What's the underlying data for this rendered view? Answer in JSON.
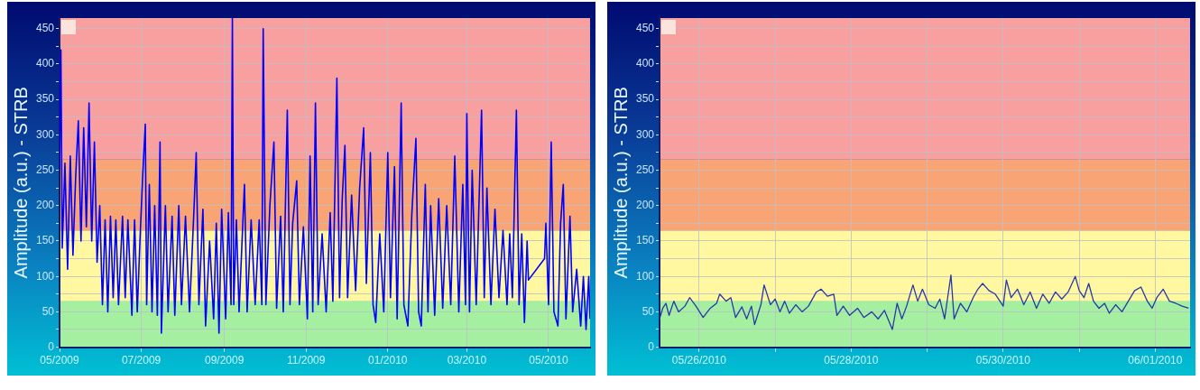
{
  "chart_data": [
    {
      "type": "line",
      "ylabel": "Amplitude (a.u.) - STRB",
      "grid": true,
      "legend": false,
      "marker": "none",
      "xlim": [
        "2009-05-01",
        "2010-06-01"
      ],
      "xticks": [
        {
          "value": "2009-05-01",
          "label": "05/2009"
        },
        {
          "value": "2009-07-01",
          "label": "07/2009"
        },
        {
          "value": "2009-09-01",
          "label": "09/2009"
        },
        {
          "value": "2009-11-01",
          "label": "11/2009"
        },
        {
          "value": "2010-01-01",
          "label": "01/2010"
        },
        {
          "value": "2010-03-01",
          "label": "03/2010"
        },
        {
          "value": "2010-05-01",
          "label": "05/2010"
        }
      ],
      "ylim": [
        0,
        465
      ],
      "yticks": [
        0,
        {
          "value": 25,
          "label": null
        },
        50,
        {
          "value": 75,
          "label": null
        },
        100,
        {
          "value": 125,
          "label": null
        },
        150,
        {
          "value": 175,
          "label": null
        },
        200,
        {
          "value": 225,
          "label": null
        },
        250,
        {
          "value": 275,
          "label": null
        },
        300,
        {
          "value": 325,
          "label": null
        },
        350,
        {
          "value": 375,
          "label": null
        },
        400,
        {
          "value": 425,
          "label": null
        },
        450
      ],
      "bands": [
        {
          "axis": "y",
          "from": 0,
          "to": 65,
          "color": "#a4f0a0"
        },
        {
          "axis": "y",
          "from": 65,
          "to": 165,
          "color": "#fff8a0"
        },
        {
          "axis": "y",
          "from": 165,
          "to": 265,
          "color": "#f8a474"
        },
        {
          "axis": "y",
          "from": 265,
          "to": 465,
          "color": "#f8a0a0"
        }
      ],
      "x": [
        "2009-05-01",
        "2009-05-02",
        "2009-05-03",
        "2009-05-05",
        "2009-05-07",
        "2009-05-09",
        "2009-05-11",
        "2009-05-13",
        "2009-05-15",
        "2009-05-17",
        "2009-05-19",
        "2009-05-21",
        "2009-05-23",
        "2009-05-25",
        "2009-05-27",
        "2009-05-29",
        "2009-05-31",
        "2009-06-02",
        "2009-06-04",
        "2009-06-06",
        "2009-06-08",
        "2009-06-10",
        "2009-06-12",
        "2009-06-14",
        "2009-06-17",
        "2009-06-19",
        "2009-06-21",
        "2009-06-24",
        "2009-06-26",
        "2009-06-28",
        "2009-06-30",
        "2009-07-02",
        "2009-07-04",
        "2009-07-05",
        "2009-07-07",
        "2009-07-09",
        "2009-07-11",
        "2009-07-13",
        "2009-07-15",
        "2009-07-16",
        "2009-07-19",
        "2009-07-21",
        "2009-07-24",
        "2009-07-26",
        "2009-07-29",
        "2009-07-31",
        "2009-08-03",
        "2009-08-06",
        "2009-08-09",
        "2009-08-11",
        "2009-08-13",
        "2009-08-16",
        "2009-08-18",
        "2009-08-21",
        "2009-08-24",
        "2009-08-26",
        "2009-08-28",
        "2009-08-30",
        "2009-09-02",
        "2009-09-04",
        "2009-09-06",
        "2009-09-07",
        "2009-09-08",
        "2009-09-10",
        "2009-09-12",
        "2009-09-16",
        "2009-09-18",
        "2009-09-21",
        "2009-09-24",
        "2009-09-27",
        "2009-09-29",
        "2009-09-30",
        "2009-10-02",
        "2009-10-05",
        "2009-10-08",
        "2009-10-10",
        "2009-10-13",
        "2009-10-15",
        "2009-10-18",
        "2009-10-20",
        "2009-10-22",
        "2009-10-25",
        "2009-10-27",
        "2009-10-30",
        "2009-11-02",
        "2009-11-04",
        "2009-11-06",
        "2009-11-08",
        "2009-11-10",
        "2009-11-13",
        "2009-11-16",
        "2009-11-19",
        "2009-11-21",
        "2009-11-24",
        "2009-11-26",
        "2009-11-28",
        "2009-11-30",
        "2009-12-02",
        "2009-12-05",
        "2009-12-08",
        "2009-12-11",
        "2009-12-14",
        "2009-12-16",
        "2009-12-19",
        "2009-12-21",
        "2009-12-23",
        "2009-12-26",
        "2009-12-29",
        "2010-01-01",
        "2010-01-03",
        "2010-01-06",
        "2010-01-08",
        "2010-01-11",
        "2010-01-13",
        "2010-01-16",
        "2010-01-19",
        "2010-01-22",
        "2010-01-24",
        "2010-01-26",
        "2010-01-29",
        "2010-01-31",
        "2010-02-02",
        "2010-02-05",
        "2010-02-08",
        "2010-02-11",
        "2010-02-14",
        "2010-02-17",
        "2010-02-20",
        "2010-02-23",
        "2010-02-26",
        "2010-02-28",
        "2010-03-01",
        "2010-03-03",
        "2010-03-05",
        "2010-03-08",
        "2010-03-12",
        "2010-03-14",
        "2010-03-16",
        "2010-03-19",
        "2010-03-22",
        "2010-03-25",
        "2010-03-28",
        "2010-03-31",
        "2010-04-02",
        "2010-04-04",
        "2010-04-07",
        "2010-04-09",
        "2010-04-11",
        "2010-04-13",
        "2010-04-15",
        "2010-04-16",
        "2010-04-28",
        "2010-04-29",
        "2010-05-01",
        "2010-05-03",
        "2010-05-05",
        "2010-05-08",
        "2010-05-10",
        "2010-05-12",
        "2010-05-14",
        "2010-05-17",
        "2010-05-19",
        "2010-05-22",
        "2010-05-25",
        "2010-05-27",
        "2010-05-29",
        "2010-05-31",
        "2010-06-01"
      ],
      "series": [
        {
          "color": "#0000ff",
          "values": [
            250,
            420,
            140,
            260,
            110,
            270,
            130,
            240,
            320,
            150,
            310,
            170,
            345,
            150,
            290,
            120,
            200,
            60,
            180,
            50,
            185,
            70,
            180,
            60,
            185,
            70,
            180,
            45,
            180,
            50,
            150,
            240,
            315,
            60,
            230,
            50,
            200,
            45,
            290,
            20,
            200,
            50,
            185,
            45,
            200,
            60,
            185,
            50,
            180,
            275,
            60,
            195,
            30,
            150,
            40,
            175,
            20,
            195,
            40,
            190,
            60,
            465,
            60,
            180,
            50,
            230,
            50,
            180,
            60,
            180,
            60,
            450,
            60,
            200,
            290,
            55,
            185,
            50,
            335,
            60,
            175,
            235,
            60,
            170,
            40,
            270,
            50,
            345,
            60,
            160,
            50,
            190,
            65,
            380,
            70,
            210,
            285,
            70,
            215,
            80,
            225,
            310,
            90,
            275,
            60,
            35,
            160,
            50,
            275,
            70,
            255,
            40,
            345,
            60,
            30,
            190,
            295,
            50,
            30,
            230,
            50,
            200,
            45,
            210,
            55,
            200,
            60,
            270,
            50,
            230,
            60,
            330,
            50,
            250,
            60,
            335,
            70,
            225,
            60,
            195,
            70,
            165,
            60,
            160,
            70,
            335,
            60,
            160,
            35,
            150,
            95,
            125,
            175,
            60,
            290,
            50,
            30,
            175,
            230,
            40,
            185,
            50,
            110,
            30,
            100,
            25,
            100,
            40
          ]
        }
      ]
    },
    {
      "type": "line",
      "ylabel": "Amplitude (a.u.) - STRB",
      "grid": true,
      "legend": false,
      "marker": "none",
      "xlim": [
        "2010-05-25T11:30",
        "2010-06-01T11:00"
      ],
      "xticks": [
        {
          "value": "2010-05-26T00:00",
          "label": "05/26/2010"
        },
        {
          "value": "2010-05-27T00:00",
          "label": null
        },
        {
          "value": "2010-05-28T00:00",
          "label": "05/28/2010"
        },
        {
          "value": "2010-05-29T00:00",
          "label": null
        },
        {
          "value": "2010-05-30T00:00",
          "label": "05/30/2010"
        },
        {
          "value": "2010-05-31T00:00",
          "label": null
        },
        {
          "value": "2010-06-01T00:00",
          "label": "06/01/2010"
        }
      ],
      "ylim": [
        0,
        465
      ],
      "yticks": [
        0,
        {
          "value": 25,
          "label": null
        },
        50,
        {
          "value": 75,
          "label": null
        },
        100,
        {
          "value": 125,
          "label": null
        },
        150,
        {
          "value": 175,
          "label": null
        },
        200,
        {
          "value": 225,
          "label": null
        },
        250,
        {
          "value": 275,
          "label": null
        },
        300,
        {
          "value": 325,
          "label": null
        },
        350,
        {
          "value": 375,
          "label": null
        },
        400,
        {
          "value": 425,
          "label": null
        },
        450
      ],
      "bands": [
        {
          "axis": "y",
          "from": 0,
          "to": 65,
          "color": "#a4f0a0"
        },
        {
          "axis": "y",
          "from": 65,
          "to": 165,
          "color": "#fff8a0"
        },
        {
          "axis": "y",
          "from": 165,
          "to": 265,
          "color": "#f8a474"
        },
        {
          "axis": "y",
          "from": 265,
          "to": 465,
          "color": "#f8a0a0"
        }
      ],
      "x": [
        "2010-05-25T11:30",
        "2010-05-25T12:30",
        "2010-05-25T13:30",
        "2010-05-25T14:30",
        "2010-05-25T16:00",
        "2010-05-25T17:30",
        "2010-05-25T19:30",
        "2010-05-25T21:00",
        "2010-05-25T23:00",
        "2010-05-26T01:15",
        "2010-05-26T03:30",
        "2010-05-26T05:30",
        "2010-05-26T06:30",
        "2010-05-26T08:30",
        "2010-05-26T10:00",
        "2010-05-26T11:30",
        "2010-05-26T13:30",
        "2010-05-26T15:00",
        "2010-05-26T16:30",
        "2010-05-26T17:30",
        "2010-05-26T19:30",
        "2010-05-26T20:30",
        "2010-05-26T22:30",
        "2010-05-27T00:00",
        "2010-05-27T01:30",
        "2010-05-27T03:00",
        "2010-05-27T04:30",
        "2010-05-27T06:30",
        "2010-05-27T08:30",
        "2010-05-27T10:30",
        "2010-05-27T13:00",
        "2010-05-27T14:30",
        "2010-05-27T16:30",
        "2010-05-27T18:30",
        "2010-05-27T19:30",
        "2010-05-27T21:30",
        "2010-05-27T23:30",
        "2010-05-28T02:00",
        "2010-05-28T04:00",
        "2010-05-28T06:30",
        "2010-05-28T08:30",
        "2010-05-28T10:30",
        "2010-05-28T13:00",
        "2010-05-28T14:30",
        "2010-05-28T16:00",
        "2010-05-28T17:30",
        "2010-05-28T19:30",
        "2010-05-28T21:00",
        "2010-05-28T22:30",
        "2010-05-29T00:30",
        "2010-05-29T02:30",
        "2010-05-29T04:00",
        "2010-05-29T05:30",
        "2010-05-29T07:30",
        "2010-05-29T08:30",
        "2010-05-29T10:30",
        "2010-05-29T12:30",
        "2010-05-29T14:30",
        "2010-05-29T16:00",
        "2010-05-29T17:30",
        "2010-05-29T19:30",
        "2010-05-29T21:30",
        "2010-05-30T00:00",
        "2010-05-30T01:00",
        "2010-05-30T02:30",
        "2010-05-30T04:30",
        "2010-05-30T06:30",
        "2010-05-30T08:30",
        "2010-05-30T10:30",
        "2010-05-30T12:30",
        "2010-05-30T14:30",
        "2010-05-30T16:30",
        "2010-05-30T18:30",
        "2010-05-30T20:30",
        "2010-05-30T22:45",
        "2010-05-31T00:00",
        "2010-05-31T01:30",
        "2010-05-31T03:00",
        "2010-05-31T04:30",
        "2010-05-31T06:15",
        "2010-05-31T08:00",
        "2010-05-31T09:30",
        "2010-05-31T11:30",
        "2010-05-31T13:30",
        "2010-05-31T15:30",
        "2010-05-31T17:30",
        "2010-05-31T19:30",
        "2010-05-31T21:30",
        "2010-05-31T23:00",
        "2010-06-01T00:30",
        "2010-06-01T02:30",
        "2010-06-01T04:30",
        "2010-06-01T06:30",
        "2010-06-01T08:30",
        "2010-06-01T10:30"
      ],
      "series": [
        {
          "color": "#2838a8",
          "values": [
            40,
            55,
            62,
            45,
            65,
            50,
            58,
            70,
            58,
            42,
            55,
            62,
            75,
            65,
            70,
            42,
            57,
            40,
            58,
            32,
            60,
            88,
            60,
            68,
            50,
            65,
            48,
            60,
            50,
            58,
            78,
            82,
            72,
            75,
            45,
            58,
            45,
            55,
            42,
            50,
            40,
            52,
            25,
            62,
            40,
            58,
            88,
            65,
            82,
            60,
            55,
            68,
            40,
            102,
            40,
            62,
            50,
            70,
            82,
            90,
            80,
            75,
            58,
            95,
            70,
            82,
            60,
            78,
            55,
            75,
            62,
            78,
            68,
            78,
            100,
            80,
            70,
            90,
            65,
            55,
            62,
            48,
            60,
            50,
            65,
            80,
            85,
            65,
            55,
            70,
            82,
            65,
            62,
            58,
            55
          ]
        }
      ]
    }
  ]
}
